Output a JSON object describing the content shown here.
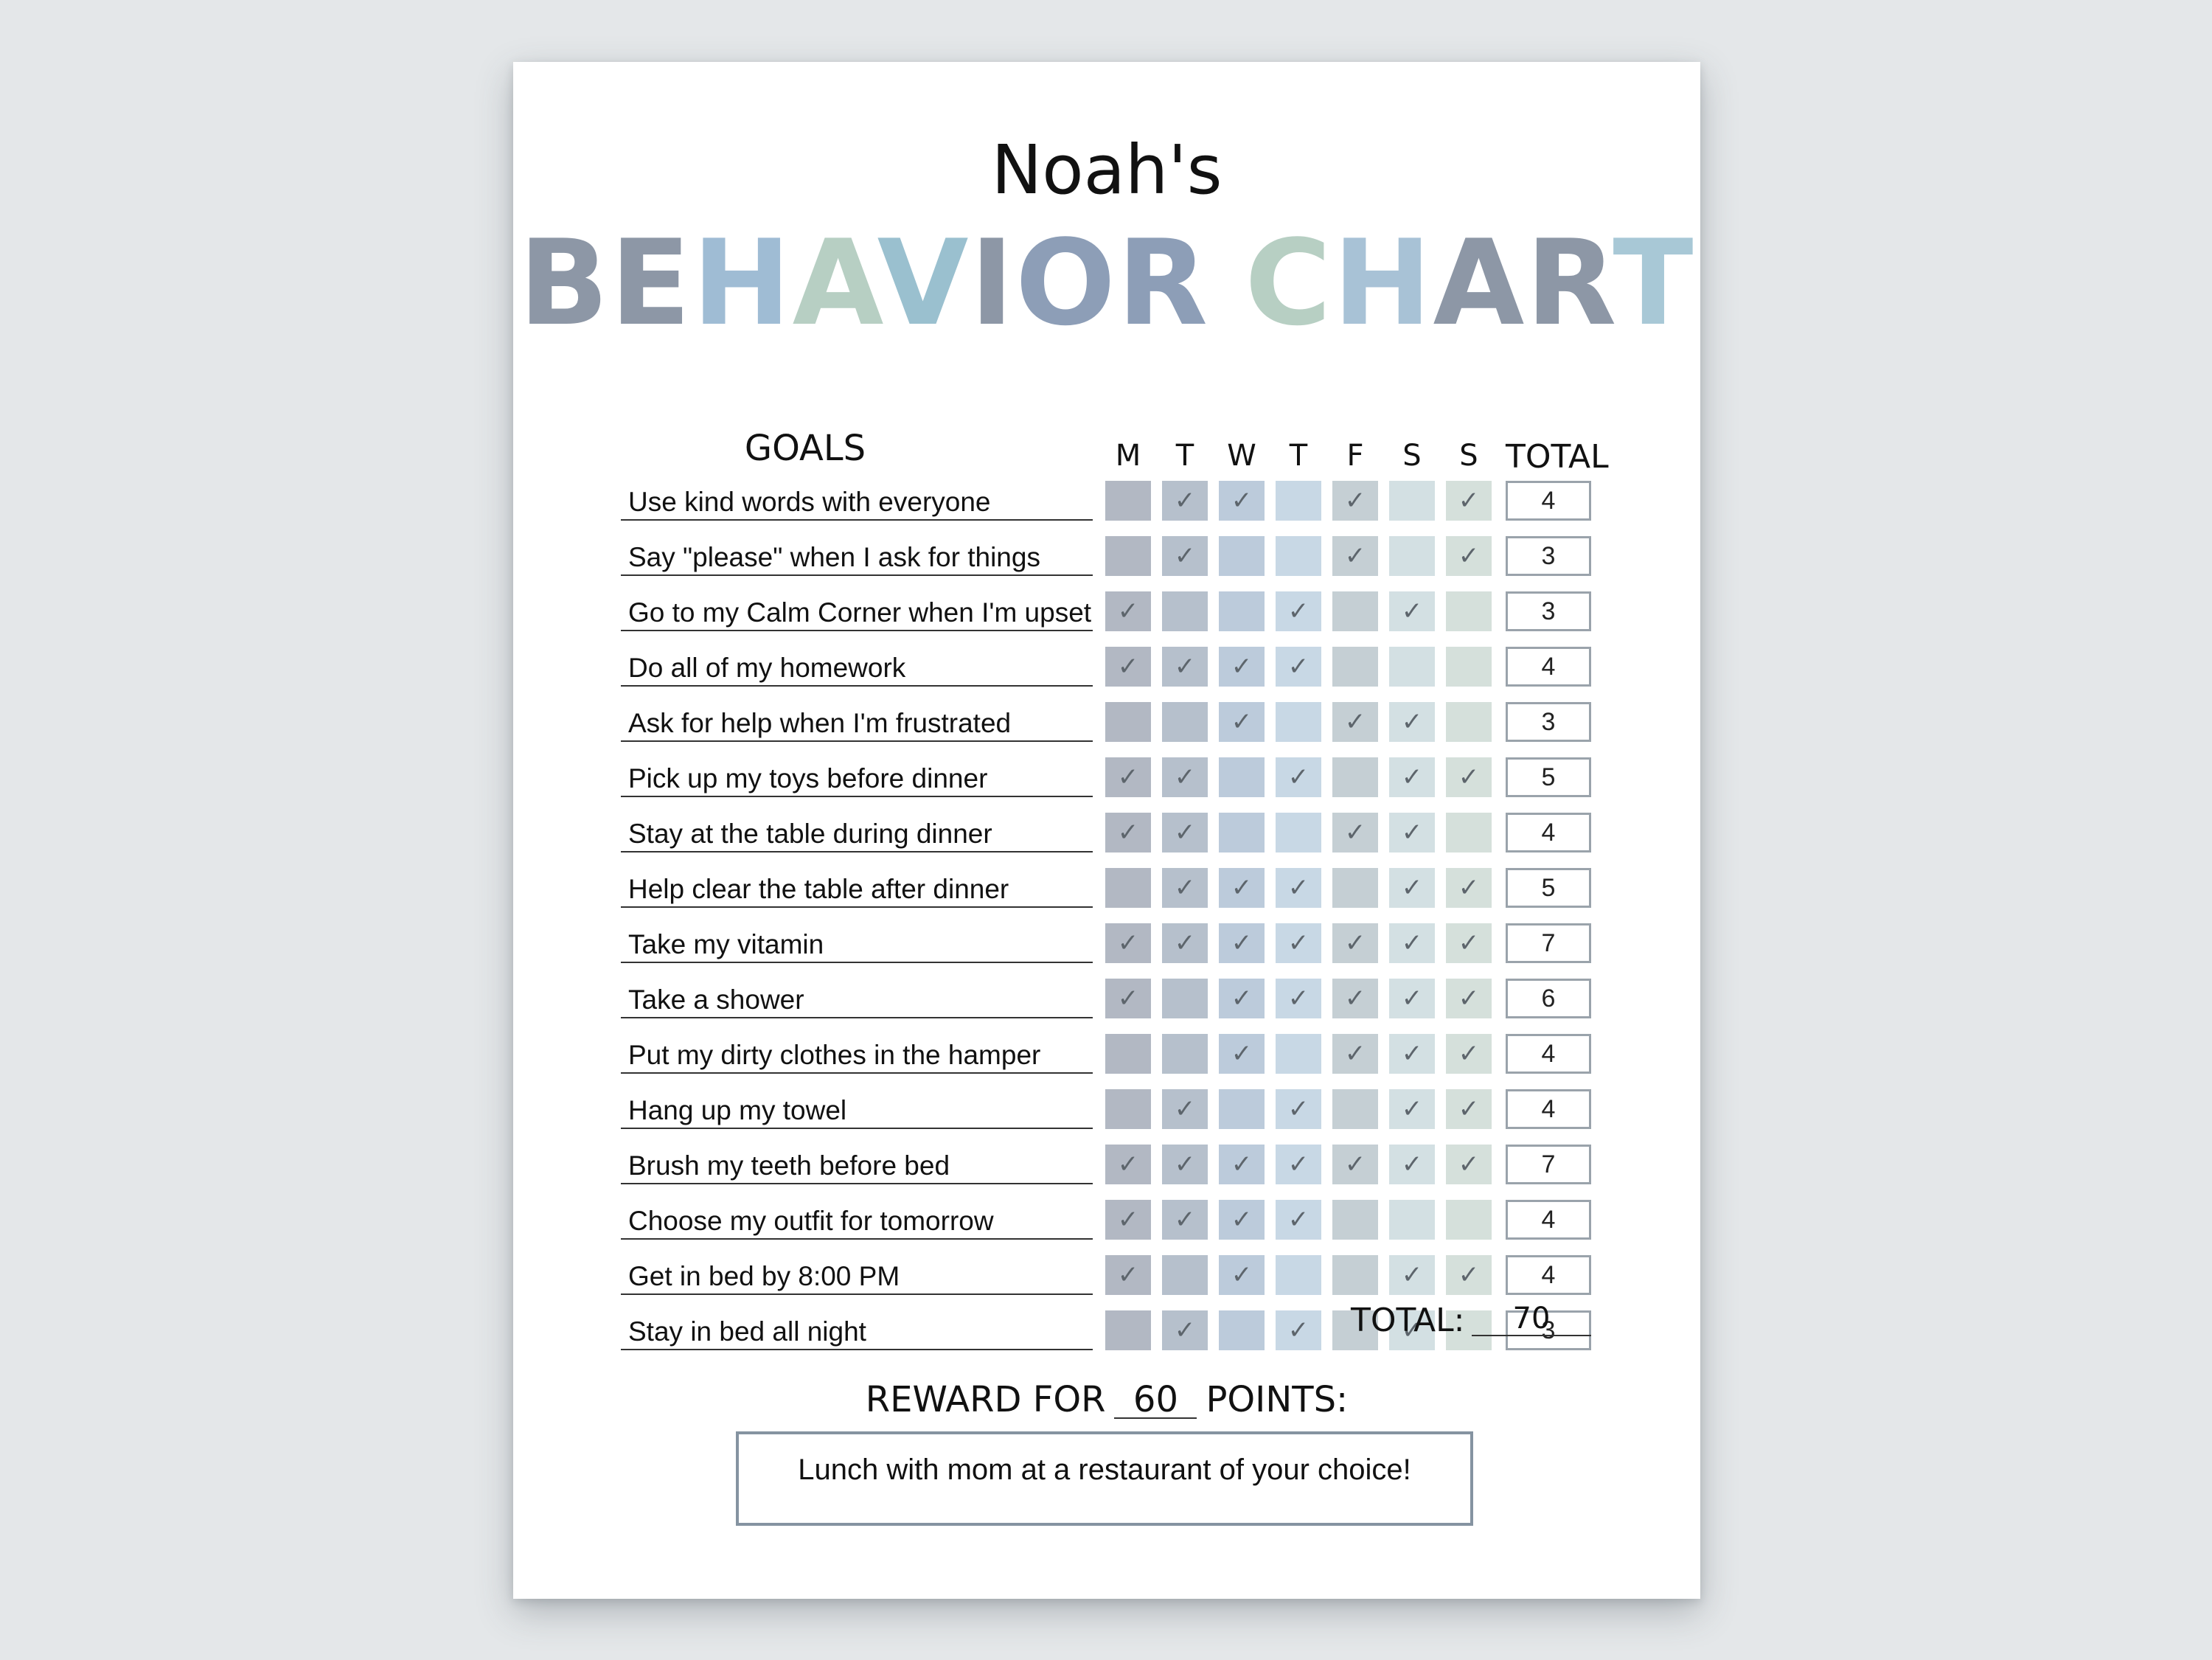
{
  "owner": "Noah's",
  "title_letters": [
    {
      "ch": "B",
      "color": "#8d97a6"
    },
    {
      "ch": "E",
      "color": "#8d97a6"
    },
    {
      "ch": "H",
      "color": "#9fbcd4"
    },
    {
      "ch": "A",
      "color": "#b7cfc3"
    },
    {
      "ch": "V",
      "color": "#9ac0cf"
    },
    {
      "ch": "I",
      "color": "#8d97a6"
    },
    {
      "ch": "O",
      "color": "#8d9eb7"
    },
    {
      "ch": "R",
      "color": "#8d9eb7"
    },
    {
      "ch": " ",
      "color": "#ffffff"
    },
    {
      "ch": "C",
      "color": "#b7cfc3"
    },
    {
      "ch": "H",
      "color": "#a8c2d6"
    },
    {
      "ch": "A",
      "color": "#8d97a6"
    },
    {
      "ch": "R",
      "color": "#8d97a6"
    },
    {
      "ch": "T",
      "color": "#a8c8d6"
    }
  ],
  "goals_heading": "GOALS",
  "days": [
    "M",
    "T",
    "W",
    "T",
    "F",
    "S",
    "S"
  ],
  "day_colors": [
    "#b2b8c3",
    "#b6c0cc",
    "#bccbdb",
    "#c8d8e5",
    "#c5cfd4",
    "#d3e0e3",
    "#d5e0db"
  ],
  "total_heading": "TOTAL",
  "check_symbol": "✓",
  "goals": [
    {
      "text": "Use kind words with everyone",
      "checks": [
        0,
        1,
        1,
        0,
        1,
        0,
        1
      ],
      "total": "4"
    },
    {
      "text": "Say \"please\" when I ask for things",
      "checks": [
        0,
        1,
        0,
        0,
        1,
        0,
        1
      ],
      "total": "3"
    },
    {
      "text": "Go to my Calm Corner when I'm upset",
      "checks": [
        1,
        0,
        0,
        1,
        0,
        1,
        0
      ],
      "total": "3"
    },
    {
      "text": "Do all of my homework",
      "checks": [
        1,
        1,
        1,
        1,
        0,
        0,
        0
      ],
      "total": "4"
    },
    {
      "text": "Ask for help when I'm frustrated",
      "checks": [
        0,
        0,
        1,
        0,
        1,
        1,
        0
      ],
      "total": "3"
    },
    {
      "text": "Pick up my toys before dinner",
      "checks": [
        1,
        1,
        0,
        1,
        0,
        1,
        1
      ],
      "total": "5"
    },
    {
      "text": "Stay at the table during dinner",
      "checks": [
        1,
        1,
        0,
        0,
        1,
        1,
        0
      ],
      "total": "4"
    },
    {
      "text": "Help clear the table after dinner",
      "checks": [
        0,
        1,
        1,
        1,
        0,
        1,
        1
      ],
      "total": "5"
    },
    {
      "text": "Take my vitamin",
      "checks": [
        1,
        1,
        1,
        1,
        1,
        1,
        1
      ],
      "total": "7"
    },
    {
      "text": "Take a shower",
      "checks": [
        1,
        0,
        1,
        1,
        1,
        1,
        1
      ],
      "total": "6"
    },
    {
      "text": "Put my dirty clothes in the hamper",
      "checks": [
        0,
        0,
        1,
        0,
        1,
        1,
        1
      ],
      "total": "4"
    },
    {
      "text": "Hang up my towel",
      "checks": [
        0,
        1,
        0,
        1,
        0,
        1,
        1
      ],
      "total": "4"
    },
    {
      "text": "Brush my teeth before bed",
      "checks": [
        1,
        1,
        1,
        1,
        1,
        1,
        1
      ],
      "total": "7"
    },
    {
      "text": "Choose my outfit for tomorrow",
      "checks": [
        1,
        1,
        1,
        1,
        0,
        0,
        0
      ],
      "total": "4"
    },
    {
      "text": "Get in bed by 8:00 PM",
      "checks": [
        1,
        0,
        1,
        0,
        0,
        1,
        1
      ],
      "total": "4"
    },
    {
      "text": "Stay in bed all night",
      "checks": [
        0,
        1,
        0,
        1,
        0,
        1,
        0
      ],
      "total": "3"
    }
  ],
  "grand_total_label": "TOTAL:",
  "grand_total_value": "70",
  "reward_prefix": "REWARD FOR",
  "reward_points": "60",
  "reward_suffix": "POINTS:",
  "reward_text": "Lunch with mom at a restaurant of your choice!"
}
